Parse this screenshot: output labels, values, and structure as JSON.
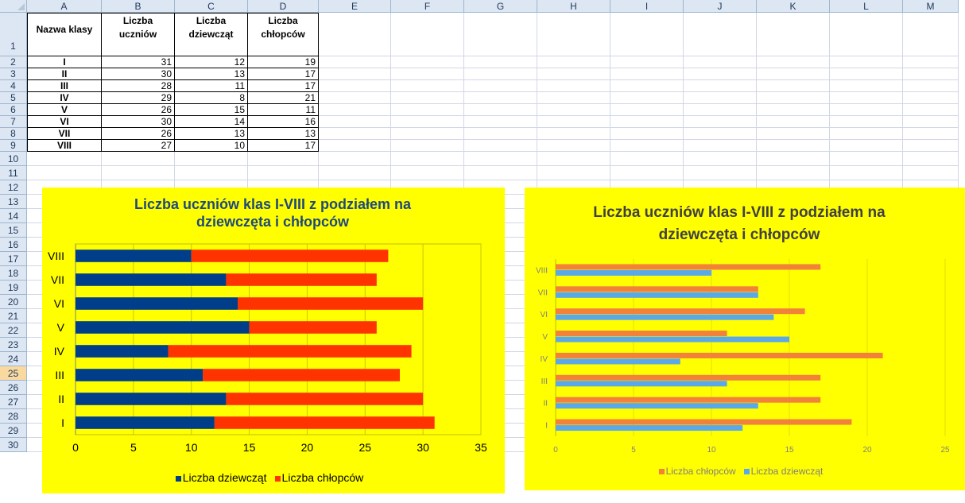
{
  "columns": [
    "A",
    "B",
    "C",
    "D",
    "E",
    "F",
    "G",
    "H",
    "I",
    "J",
    "K",
    "L",
    "M"
  ],
  "rows": [
    "1",
    "2",
    "3",
    "4",
    "5",
    "6",
    "7",
    "8",
    "9",
    "10",
    "11",
    "12",
    "13",
    "14",
    "15",
    "16",
    "17",
    "18",
    "19",
    "20",
    "21",
    "22",
    "23",
    "24",
    "25",
    "26",
    "27",
    "28",
    "29",
    "30"
  ],
  "selected_row": "25",
  "table": {
    "headers": [
      "Nazwa klasy",
      "Liczba uczniów",
      "Liczba dziewcząt",
      "Liczba chłopców"
    ],
    "rows": [
      [
        "I",
        "31",
        "12",
        "19"
      ],
      [
        "II",
        "30",
        "13",
        "17"
      ],
      [
        "III",
        "28",
        "11",
        "17"
      ],
      [
        "IV",
        "29",
        "8",
        "21"
      ],
      [
        "V",
        "26",
        "15",
        "11"
      ],
      [
        "VI",
        "30",
        "14",
        "16"
      ],
      [
        "VII",
        "26",
        "13",
        "13"
      ],
      [
        "VIII",
        "27",
        "10",
        "17"
      ]
    ]
  },
  "colors": {
    "chart_bg": "#ffff00",
    "chart1_title": "#1f497d",
    "chart2_title": "#404040",
    "navy": "#003e8a",
    "red_orange": "#ff3300",
    "orange": "#f2813a",
    "light_blue": "#5aa8e8"
  },
  "chart_data": [
    {
      "type": "bar",
      "orientation": "horizontal",
      "stacked": true,
      "title": "Liczba uczniów klas I-VIII z podziałem na dziewczęta i chłopców",
      "categories": [
        "I",
        "II",
        "III",
        "IV",
        "V",
        "VI",
        "VII",
        "VIII"
      ],
      "series": [
        {
          "name": "Liczba dziewcząt",
          "values": [
            12,
            13,
            11,
            8,
            15,
            14,
            13,
            10
          ],
          "color": "#003e8a"
        },
        {
          "name": "Liczba chłopców",
          "values": [
            19,
            17,
            17,
            21,
            11,
            16,
            13,
            17
          ],
          "color": "#ff3300"
        }
      ],
      "xlim": [
        0,
        35
      ],
      "ticks": [
        "0",
        "5",
        "10",
        "15",
        "20",
        "25",
        "30",
        "35"
      ],
      "grid": true,
      "legend": "bottom"
    },
    {
      "type": "bar",
      "orientation": "horizontal",
      "stacked": false,
      "title": "Liczba uczniów klas I-VIII z podziałem na dziewczęta i chłopców",
      "categories": [
        "I",
        "II",
        "III",
        "IV",
        "V",
        "VI",
        "VII",
        "VIII"
      ],
      "series": [
        {
          "name": "Liczba chłopców",
          "values": [
            19,
            17,
            17,
            21,
            11,
            16,
            13,
            17
          ],
          "color": "#f2813a"
        },
        {
          "name": "Liczba dziewcząt",
          "values": [
            12,
            13,
            11,
            8,
            15,
            14,
            13,
            10
          ],
          "color": "#5aa8e8"
        }
      ],
      "xlim": [
        0,
        25
      ],
      "ticks": [
        "0",
        "5",
        "10",
        "15",
        "20",
        "25"
      ],
      "grid": true,
      "legend": "bottom"
    }
  ]
}
